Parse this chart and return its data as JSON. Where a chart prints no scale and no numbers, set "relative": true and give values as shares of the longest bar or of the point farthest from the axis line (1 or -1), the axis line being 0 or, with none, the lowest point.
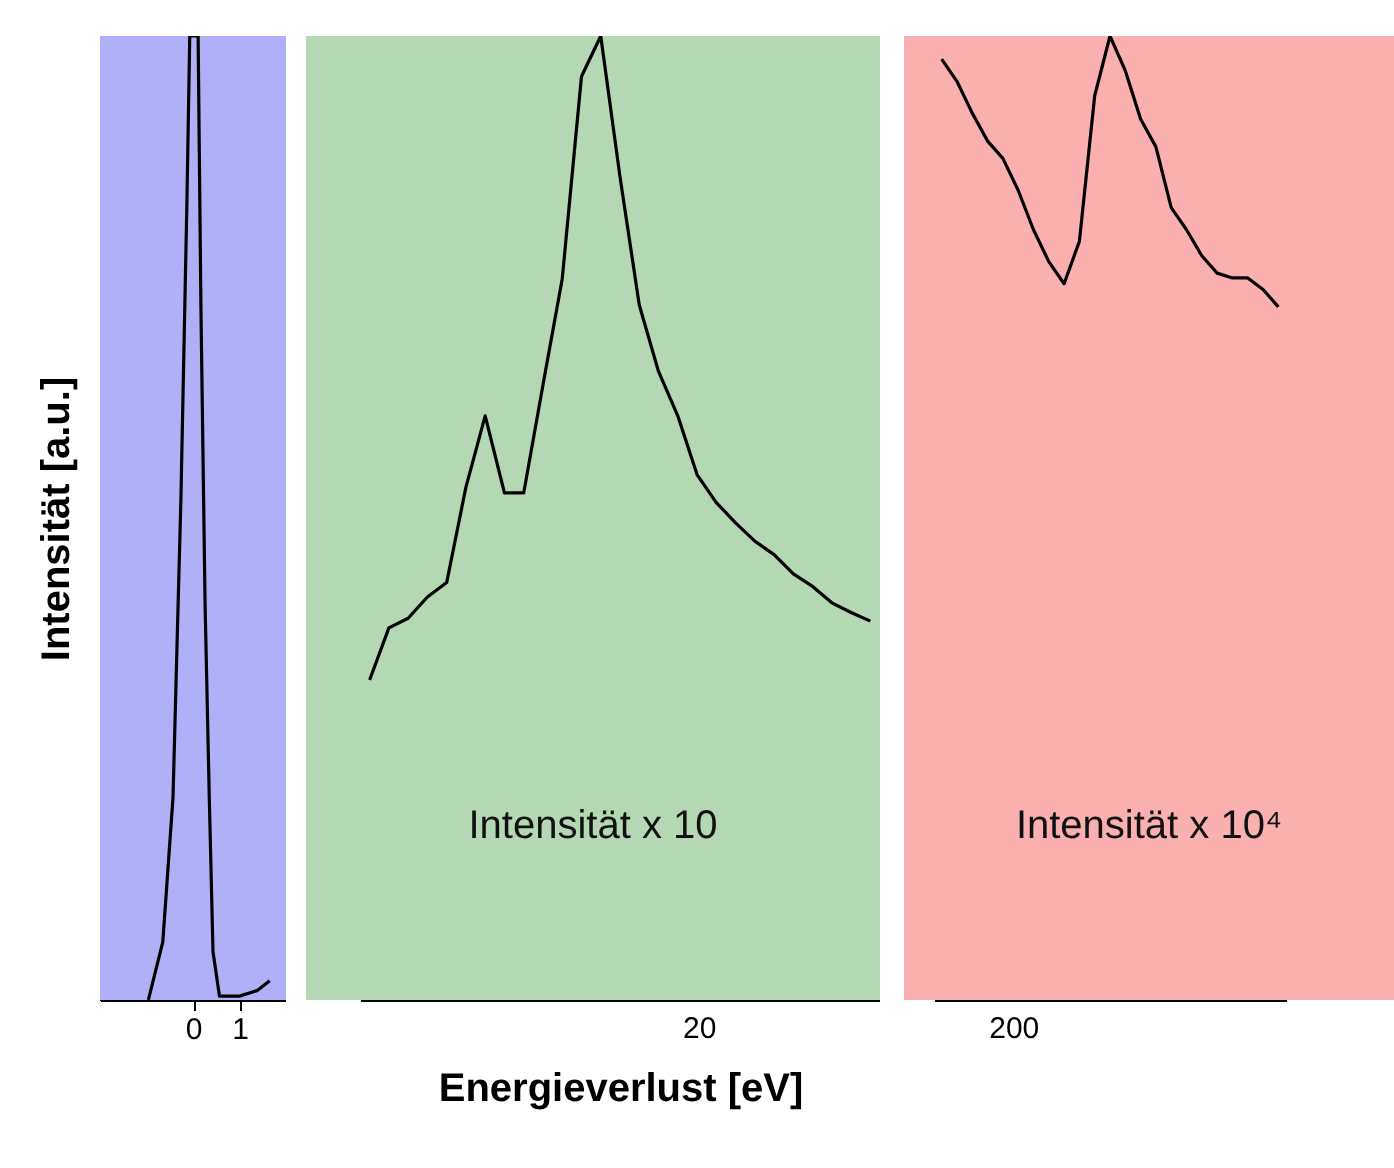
{
  "chart_data": [
    {
      "type": "line",
      "relative": true,
      "ylabel": "Intensität [a.u.]",
      "xlim": [
        -2,
        2
      ],
      "xticks": [
        0,
        1
      ],
      "bands": [
        {
          "axis": "x",
          "from": -2,
          "to": 2,
          "color": "#b0b0f8"
        }
      ],
      "x": [
        -0.96,
        -0.65,
        -0.43,
        -0.26,
        -0.13,
        -0.07,
        0.11,
        0.17,
        0.26,
        0.35,
        0.43,
        0.57,
        1.0,
        1.39,
        1.65
      ],
      "series": [
        {
          "color": "#000000",
          "values": [
            0,
            0.06,
            0.21,
            0.52,
            0.83,
            1,
            1,
            0.72,
            0.41,
            0.21,
            0.05,
            0.004,
            0.004,
            0.01,
            0.02
          ]
        }
      ]
    },
    {
      "type": "line",
      "relative": true,
      "xlabel": "Energieverlust [eV]",
      "bands": [
        {
          "axis": "y",
          "from": 0,
          "to": 1,
          "color": "#b4d8b4"
        }
      ],
      "annotations": [
        "Intensität x 10",
        "20"
      ],
      "categories": [
        null,
        null,
        null,
        null,
        null,
        null,
        null,
        null,
        null,
        null,
        null,
        null,
        null,
        null,
        null,
        null,
        null,
        null,
        null,
        null,
        null,
        null,
        null,
        null,
        null,
        null,
        null
      ],
      "series": [
        {
          "color": "#000000",
          "values": [
            0.332,
            0.386,
            0.396,
            0.418,
            0.433,
            0.532,
            0.606,
            0.526,
            0.526,
            0.638,
            0.748,
            0.958,
            1,
            0.854,
            0.721,
            0.652,
            0.606,
            0.545,
            0.516,
            0.495,
            0.476,
            0.462,
            0.442,
            0.429,
            0.412,
            0.402,
            0.393
          ]
        }
      ]
    },
    {
      "type": "line",
      "relative": true,
      "bands": [
        {
          "axis": "y",
          "from": 0,
          "to": 1,
          "color": "#fbb0b0"
        }
      ],
      "annotations": [
        "Intensität x 10⁴",
        "200"
      ],
      "categories": [
        null,
        null,
        null,
        null,
        null,
        null,
        null,
        null,
        null,
        null,
        null,
        null,
        null,
        null,
        null,
        null,
        null,
        null,
        null,
        null,
        null,
        null,
        null
      ],
      "series": [
        {
          "color": "#000000",
          "values": [
            0.976,
            0.953,
            0.92,
            0.891,
            0.873,
            0.84,
            0.799,
            0.766,
            0.743,
            0.787,
            0.938,
            1,
            0.964,
            0.914,
            0.885,
            0.822,
            0.799,
            0.772,
            0.754,
            0.749,
            0.749,
            0.737,
            0.719
          ]
        }
      ]
    }
  ]
}
